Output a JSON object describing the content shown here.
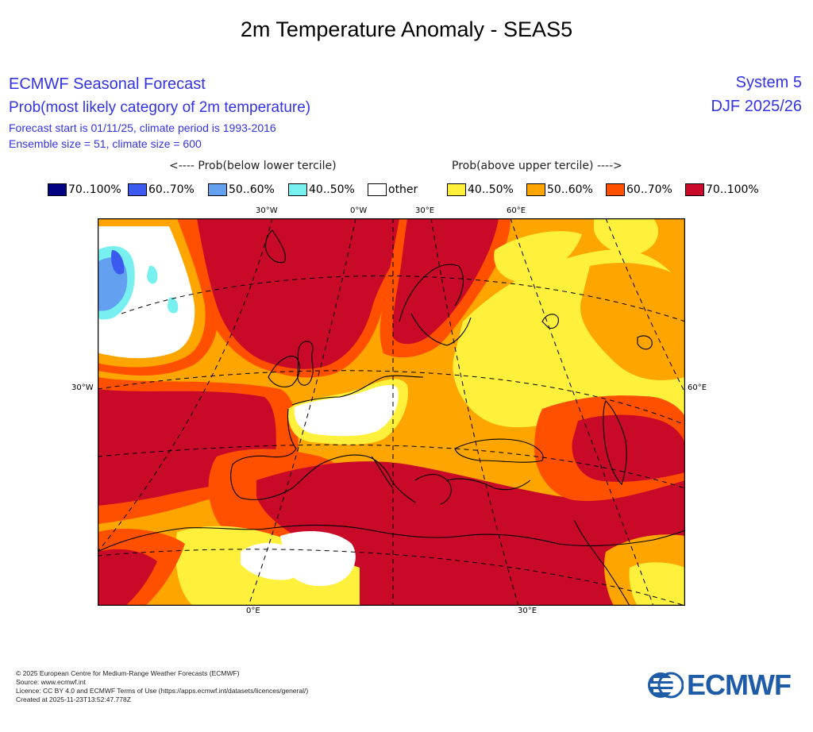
{
  "header": {
    "main_title": "2m Temperature Anomaly - SEAS5",
    "forecast_title": "ECMWF Seasonal Forecast",
    "prob_title": "Prob(most likely category of 2m temperature)",
    "forecast_start": "Forecast start is 01/11/25, climate period is 1993-2016",
    "ensemble_size": "Ensemble size = 51, climate size = 600",
    "system": "System 5",
    "season": "DJF 2025/26"
  },
  "legend": {
    "below_header": "<---- Prob(below lower tercile)",
    "above_header": "Prob(above upper tercile) ---->",
    "items": [
      {
        "label": "70..100%",
        "color": "#000080"
      },
      {
        "label": "60..70%",
        "color": "#3c5af0"
      },
      {
        "label": "50..60%",
        "color": "#64a0f0"
      },
      {
        "label": "40..50%",
        "color": "#78f0f0"
      },
      {
        "label": "other",
        "color": "#ffffff"
      },
      {
        "label": "40..50%",
        "color": "#fff03c"
      },
      {
        "label": "50..60%",
        "color": "#ffa500"
      },
      {
        "label": "60..70%",
        "color": "#ff5000"
      },
      {
        "label": "70..100%",
        "color": "#c80a28"
      }
    ]
  },
  "map": {
    "coord_labels": {
      "top_30w": "30°W",
      "top_0w": "0°W",
      "top_30e": "30°E",
      "top_60e": "60°E",
      "left_30w": "30°W",
      "right_60e": "60°E",
      "bottom_0e": "0°E",
      "bottom_30e": "30°E"
    }
  },
  "footer": {
    "line1": "© 2025 European Centre for Medium-Range Weather Forecasts (ECMWF)",
    "line2": "Source: www.ecmwf.int",
    "line3": "Licence: CC BY 4.0 and ECMWF Terms of Use (https://apps.ecmwf.int/datasets/licences/general/)",
    "line4": "Created at 2025-11-23T13:52:47.778Z"
  },
  "logo": {
    "text": "ECMWF"
  }
}
